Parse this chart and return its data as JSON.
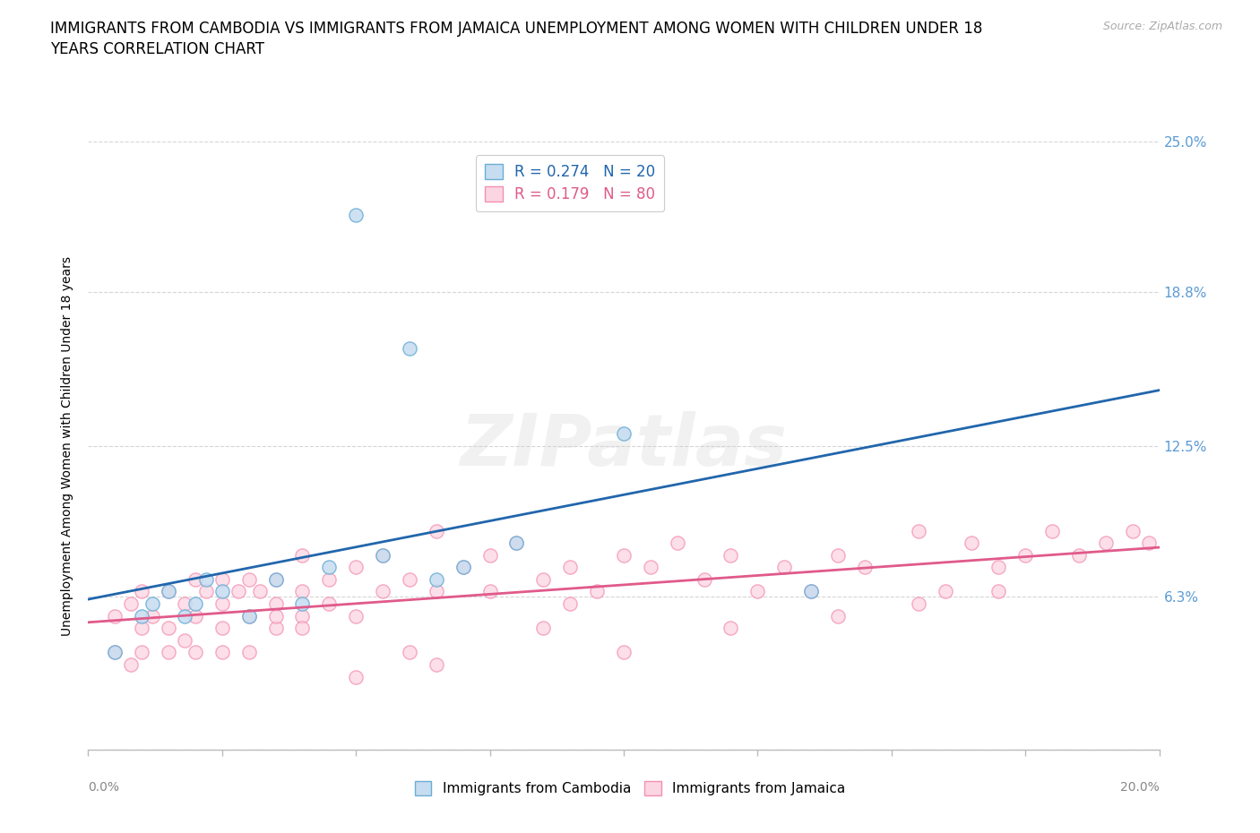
{
  "title_line1": "IMMIGRANTS FROM CAMBODIA VS IMMIGRANTS FROM JAMAICA UNEMPLOYMENT AMONG WOMEN WITH CHILDREN UNDER 18",
  "title_line2": "YEARS CORRELATION CHART",
  "source": "Source: ZipAtlas.com",
  "ylabel": "Unemployment Among Women with Children Under 18 years",
  "xlim": [
    0.0,
    0.2
  ],
  "ylim": [
    0.0,
    0.25
  ],
  "yticks": [
    0.0,
    0.063,
    0.125,
    0.188,
    0.25
  ],
  "ytick_labels": [
    "",
    "6.3%",
    "12.5%",
    "18.8%",
    "25.0%"
  ],
  "xtick_labels_ends": [
    "0.0%",
    "20.0%"
  ],
  "cambodia_color": "#6baed6",
  "cambodia_face": "#c6dcf0",
  "jamaica_color": "#f48fb1",
  "jamaica_face": "#fcd5e2",
  "trend_cambodia_color": "#2166ac",
  "trend_jamaica_color": "#e05a8a",
  "R_cambodia": 0.274,
  "N_cambodia": 20,
  "R_jamaica": 0.179,
  "N_jamaica": 80,
  "legend_label_cambodia": "Immigrants from Cambodia",
  "legend_label_jamaica": "Immigrants from Jamaica",
  "watermark": "ZIPatlas",
  "background_color": "#ffffff",
  "grid_color": "#cccccc",
  "tick_color": "#5b9bd5",
  "title_fontsize": 12,
  "axis_label_fontsize": 10,
  "tick_fontsize": 11,
  "cambodia_x": [
    0.005,
    0.01,
    0.012,
    0.015,
    0.018,
    0.02,
    0.022,
    0.025,
    0.03,
    0.035,
    0.04,
    0.045,
    0.05,
    0.055,
    0.06,
    0.065,
    0.07,
    0.08,
    0.1,
    0.135
  ],
  "cambodia_y": [
    0.04,
    0.055,
    0.06,
    0.065,
    0.055,
    0.06,
    0.07,
    0.065,
    0.055,
    0.07,
    0.06,
    0.075,
    0.22,
    0.08,
    0.165,
    0.07,
    0.075,
    0.085,
    0.13,
    0.065
  ],
  "jamaica_x": [
    0.005,
    0.005,
    0.008,
    0.008,
    0.01,
    0.01,
    0.01,
    0.012,
    0.015,
    0.015,
    0.015,
    0.018,
    0.018,
    0.02,
    0.02,
    0.02,
    0.022,
    0.025,
    0.025,
    0.025,
    0.028,
    0.03,
    0.03,
    0.03,
    0.032,
    0.035,
    0.035,
    0.035,
    0.04,
    0.04,
    0.04,
    0.045,
    0.045,
    0.05,
    0.05,
    0.055,
    0.055,
    0.06,
    0.065,
    0.065,
    0.07,
    0.075,
    0.075,
    0.08,
    0.085,
    0.09,
    0.095,
    0.1,
    0.105,
    0.11,
    0.115,
    0.12,
    0.125,
    0.13,
    0.135,
    0.14,
    0.145,
    0.155,
    0.16,
    0.165,
    0.17,
    0.175,
    0.18,
    0.185,
    0.19,
    0.195,
    0.198,
    0.1,
    0.12,
    0.14,
    0.155,
    0.17,
    0.085,
    0.09,
    0.05,
    0.06,
    0.065,
    0.035,
    0.04,
    0.025
  ],
  "jamaica_y": [
    0.04,
    0.055,
    0.06,
    0.035,
    0.05,
    0.065,
    0.04,
    0.055,
    0.05,
    0.065,
    0.04,
    0.06,
    0.045,
    0.07,
    0.055,
    0.04,
    0.065,
    0.06,
    0.07,
    0.05,
    0.065,
    0.055,
    0.07,
    0.04,
    0.065,
    0.06,
    0.07,
    0.05,
    0.08,
    0.065,
    0.055,
    0.07,
    0.06,
    0.075,
    0.055,
    0.065,
    0.08,
    0.07,
    0.065,
    0.09,
    0.075,
    0.08,
    0.065,
    0.085,
    0.07,
    0.075,
    0.065,
    0.08,
    0.075,
    0.085,
    0.07,
    0.08,
    0.065,
    0.075,
    0.065,
    0.08,
    0.075,
    0.09,
    0.065,
    0.085,
    0.075,
    0.08,
    0.09,
    0.08,
    0.085,
    0.09,
    0.085,
    0.04,
    0.05,
    0.055,
    0.06,
    0.065,
    0.05,
    0.06,
    0.03,
    0.04,
    0.035,
    0.055,
    0.05,
    0.04
  ]
}
